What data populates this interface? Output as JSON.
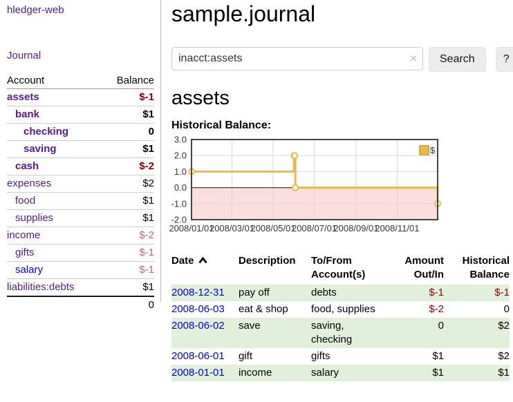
{
  "palette": {
    "link_purple": "#551a8b",
    "link_blue": "#0000dd",
    "neg_strong": "#8b0000",
    "neg_soft": "#be6a6a",
    "row_green": "#e2efda",
    "chart_gold": "#e8bc45",
    "chart_gold_dark": "#c89b28"
  },
  "sidebar": {
    "brand": "hledger-web",
    "nav": {
      "journal": "Journal"
    },
    "table": {
      "account_header": "Account",
      "balance_header": "Balance",
      "rows": [
        {
          "name": "assets",
          "balance": "$-1",
          "level": 1,
          "bold": true,
          "name_color": "#551a8b",
          "balance_color": "#8b0000"
        },
        {
          "name": "bank",
          "balance": "$1",
          "level": 2,
          "bold": true,
          "name_color": "#551a8b",
          "balance_color": "#000000"
        },
        {
          "name": "checking",
          "balance": "0",
          "level": 3,
          "bold": true,
          "name_color": "#551a8b",
          "balance_color": "#000000"
        },
        {
          "name": "saving",
          "balance": "$1",
          "level": 3,
          "bold": true,
          "name_color": "#551a8b",
          "balance_color": "#000000"
        },
        {
          "name": "cash",
          "balance": "$-2",
          "level": 2,
          "bold": true,
          "name_color": "#551a8b",
          "balance_color": "#8b0000"
        },
        {
          "name": "expenses",
          "balance": "$2",
          "level": 1,
          "bold": false,
          "name_color": "#551a8b",
          "balance_color": "#000000"
        },
        {
          "name": "food",
          "balance": "$1",
          "level": 2,
          "bold": false,
          "name_color": "#551a8b",
          "balance_color": "#000000"
        },
        {
          "name": "supplies",
          "balance": "$1",
          "level": 2,
          "bold": false,
          "name_color": "#551a8b",
          "balance_color": "#000000"
        },
        {
          "name": "income",
          "balance": "$-2",
          "level": 1,
          "bold": false,
          "name_color": "#551a8b",
          "balance_color": "#be6a6a"
        },
        {
          "name": "gifts",
          "balance": "$-1",
          "level": 2,
          "bold": false,
          "name_color": "#551a8b",
          "balance_color": "#be6a6a"
        },
        {
          "name": "salary",
          "balance": "$-1",
          "level": 2,
          "bold": false,
          "name_color": "#0000dd",
          "balance_color": "#be6a6a"
        },
        {
          "name": "liabilities:debts",
          "balance": "$1",
          "level": 1,
          "bold": false,
          "name_color": "#551a8b",
          "balance_color": "#000000"
        }
      ],
      "total": "0"
    }
  },
  "main": {
    "title": "sample.journal",
    "search": {
      "value": "inacct:assets",
      "clear_icon": "×",
      "search_button": "Search",
      "help_button": "?"
    },
    "account_heading": "assets",
    "chart_label": "Historical Balance:"
  },
  "chart_data": {
    "type": "line",
    "title": "Historical Balance",
    "series": [
      {
        "name": "$",
        "color": "#e8bc45",
        "step": true,
        "points": [
          {
            "x": "2008-01-01",
            "y": 1
          },
          {
            "x": "2008-06-01",
            "y": 2
          },
          {
            "x": "2008-06-02",
            "y": 2
          },
          {
            "x": "2008-06-03",
            "y": 0
          },
          {
            "x": "2008-12-31",
            "y": -1
          }
        ]
      }
    ],
    "x_range": [
      "2008-01-01",
      "2008-12-31"
    ],
    "ylim": [
      -2,
      3
    ],
    "y_ticks": [
      3.0,
      2.0,
      1.0,
      0.0,
      -1.0,
      -2.0
    ],
    "y_tick_labels": [
      "3.0",
      "2.0",
      "1.0",
      "0.0",
      "-1.0",
      "-2.0"
    ],
    "x_ticks": [
      {
        "date": "2008-01-01",
        "label": "2008/01/01"
      },
      {
        "date": "2008-03-01",
        "label": "2008/03/01"
      },
      {
        "date": "2008-05-01",
        "label": "2008/05/01"
      },
      {
        "date": "2008-07-01",
        "label": "2008/07/01"
      },
      {
        "date": "2008-09-01",
        "label": "2008/09/01"
      },
      {
        "date": "2008-11-01",
        "label": "2008/11/01"
      }
    ],
    "legend": {
      "label": "$",
      "position": "top-right"
    },
    "grid": true,
    "zero_line_color": "#a51212",
    "negative_fill": "#fcdede",
    "grid_color": "#d8d8d8",
    "border_color": "#444444"
  },
  "register": {
    "headers": {
      "date": "Date",
      "description": "Description",
      "accounts_line1": "To/From",
      "accounts_line2": "Account(s)",
      "amount_line1": "Amount",
      "amount_line2": "Out/In",
      "balance_line1": "Historical",
      "balance_line2": "Balance"
    },
    "rows": [
      {
        "date": "2008-12-31",
        "description": "pay off",
        "accounts": "debts",
        "amount": "$-1",
        "balance": "$-1",
        "amount_color": "#8b0000",
        "balance_color": "#8b0000"
      },
      {
        "date": "2008-06-03",
        "description": "eat & shop",
        "accounts": "food, supplies",
        "amount": "$-2",
        "balance": "0",
        "amount_color": "#8b0000",
        "balance_color": "#000000"
      },
      {
        "date": "2008-06-02",
        "description": "save",
        "accounts": "saving, checking",
        "amount": "0",
        "balance": "$2",
        "amount_color": "#000000",
        "balance_color": "#000000"
      },
      {
        "date": "2008-06-01",
        "description": "gift",
        "accounts": "gifts",
        "amount": "$1",
        "balance": "$2",
        "amount_color": "#000000",
        "balance_color": "#000000"
      },
      {
        "date": "2008-01-01",
        "description": "income",
        "accounts": "salary",
        "amount": "$1",
        "balance": "$1",
        "amount_color": "#000000",
        "balance_color": "#000000"
      }
    ]
  }
}
